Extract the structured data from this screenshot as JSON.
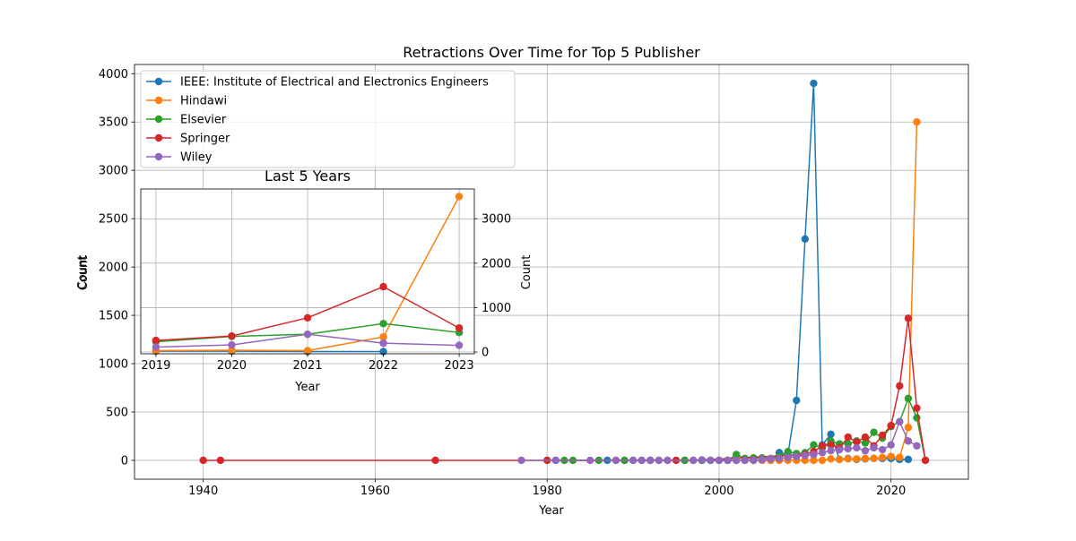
{
  "chart_data": [
    {
      "type": "line",
      "title": "Retractions Over Time for Top 5 Publisher",
      "xlabel": "Year",
      "ylabel": "",
      "xlim": [
        1932,
        2029
      ],
      "ylim": [
        -195,
        4095
      ],
      "xticks": [
        1940,
        1960,
        1980,
        2000,
        2020
      ],
      "yticks": [
        0,
        500,
        1000,
        1500,
        2000,
        2500,
        3000,
        3500,
        4000
      ],
      "grid": true,
      "legend": "top-left",
      "series": [
        {
          "name": "IEEE: Institute of Electrical and Electronics Engineers",
          "color": "#1f77b4",
          "points": [
            [
              1981,
              0
            ],
            [
              1987,
              0
            ],
            [
              1989,
              0
            ],
            [
              1990,
              0
            ],
            [
              1991,
              0
            ],
            [
              1992,
              0
            ],
            [
              1993,
              0
            ],
            [
              1994,
              0
            ],
            [
              1996,
              0
            ],
            [
              1998,
              0
            ],
            [
              1999,
              0
            ],
            [
              2000,
              0
            ],
            [
              2001,
              0
            ],
            [
              2002,
              0
            ],
            [
              2003,
              0
            ],
            [
              2004,
              0
            ],
            [
              2005,
              0
            ],
            [
              2006,
              0
            ],
            [
              2007,
              80
            ],
            [
              2008,
              60
            ],
            [
              2009,
              620
            ],
            [
              2010,
              2290
            ],
            [
              2011,
              3900
            ],
            [
              2012,
              160
            ],
            [
              2013,
              270
            ],
            [
              2014,
              10
            ],
            [
              2015,
              20
            ],
            [
              2016,
              10
            ],
            [
              2017,
              15
            ],
            [
              2018,
              20
            ],
            [
              2019,
              20
            ],
            [
              2020,
              20
            ],
            [
              2021,
              10
            ],
            [
              2022,
              10
            ]
          ]
        },
        {
          "name": "Hindawi",
          "color": "#ff7f0e",
          "points": [
            [
              2003,
              0
            ],
            [
              2004,
              0
            ],
            [
              2005,
              0
            ],
            [
              2006,
              0
            ],
            [
              2007,
              0
            ],
            [
              2008,
              0
            ],
            [
              2009,
              0
            ],
            [
              2010,
              0
            ],
            [
              2011,
              0
            ],
            [
              2012,
              0
            ],
            [
              2013,
              15
            ],
            [
              2014,
              10
            ],
            [
              2015,
              15
            ],
            [
              2016,
              15
            ],
            [
              2017,
              20
            ],
            [
              2018,
              20
            ],
            [
              2019,
              30
            ],
            [
              2020,
              40
            ],
            [
              2021,
              30
            ],
            [
              2022,
              340
            ],
            [
              2023,
              3500
            ]
          ]
        },
        {
          "name": "Elsevier",
          "color": "#2ca02c",
          "points": [
            [
              1982,
              0
            ],
            [
              1983,
              0
            ],
            [
              1986,
              0
            ],
            [
              1989,
              0
            ],
            [
              1992,
              0
            ],
            [
              1996,
              0
            ],
            [
              1998,
              0
            ],
            [
              1999,
              0
            ],
            [
              2000,
              0
            ],
            [
              2001,
              0
            ],
            [
              2002,
              60
            ],
            [
              2003,
              20
            ],
            [
              2004,
              25
            ],
            [
              2005,
              25
            ],
            [
              2006,
              20
            ],
            [
              2007,
              40
            ],
            [
              2008,
              90
            ],
            [
              2009,
              70
            ],
            [
              2010,
              80
            ],
            [
              2011,
              160
            ],
            [
              2012,
              130
            ],
            [
              2013,
              200
            ],
            [
              2014,
              170
            ],
            [
              2015,
              170
            ],
            [
              2016,
              200
            ],
            [
              2017,
              180
            ],
            [
              2018,
              290
            ],
            [
              2019,
              230
            ],
            [
              2020,
              350
            ],
            [
              2021,
              400
            ],
            [
              2022,
              640
            ],
            [
              2023,
              440
            ],
            [
              2024,
              0
            ]
          ]
        },
        {
          "name": "Springer",
          "color": "#d62728",
          "points": [
            [
              1940,
              0
            ],
            [
              1942,
              0
            ],
            [
              1967,
              0
            ],
            [
              1980,
              0
            ],
            [
              1988,
              0
            ],
            [
              1995,
              0
            ],
            [
              1997,
              0
            ],
            [
              2010,
              60
            ],
            [
              2011,
              90
            ],
            [
              2012,
              150
            ],
            [
              2013,
              160
            ],
            [
              2014,
              130
            ],
            [
              2015,
              240
            ],
            [
              2016,
              190
            ],
            [
              2017,
              240
            ],
            [
              2018,
              150
            ],
            [
              2019,
              260
            ],
            [
              2020,
              360
            ],
            [
              2021,
              770
            ],
            [
              2022,
              1470
            ],
            [
              2023,
              540
            ],
            [
              2024,
              0
            ]
          ]
        },
        {
          "name": "Wiley",
          "color": "#9467bd",
          "points": [
            [
              1977,
              0
            ],
            [
              1981,
              0
            ],
            [
              1985,
              0
            ],
            [
              1988,
              0
            ],
            [
              1990,
              0
            ],
            [
              1991,
              0
            ],
            [
              1992,
              0
            ],
            [
              1993,
              0
            ],
            [
              1994,
              0
            ],
            [
              1997,
              0
            ],
            [
              1998,
              5
            ],
            [
              1999,
              0
            ],
            [
              2000,
              0
            ],
            [
              2001,
              0
            ],
            [
              2002,
              0
            ],
            [
              2003,
              0
            ],
            [
              2004,
              0
            ],
            [
              2005,
              10
            ],
            [
              2006,
              15
            ],
            [
              2007,
              20
            ],
            [
              2008,
              30
            ],
            [
              2009,
              40
            ],
            [
              2010,
              50
            ],
            [
              2011,
              60
            ],
            [
              2012,
              80
            ],
            [
              2013,
              100
            ],
            [
              2014,
              110
            ],
            [
              2015,
              120
            ],
            [
              2016,
              130
            ],
            [
              2017,
              100
            ],
            [
              2018,
              130
            ],
            [
              2019,
              110
            ],
            [
              2020,
              160
            ],
            [
              2021,
              400
            ],
            [
              2022,
              200
            ],
            [
              2023,
              150
            ]
          ]
        }
      ]
    },
    {
      "type": "line",
      "title": "Last 5 Years",
      "xlabel": "Year",
      "ylabel": "Count",
      "xlim": [
        2018.8,
        2023.2
      ],
      "ylim": [
        -40,
        3670
      ],
      "xticks": [
        2019,
        2020,
        2021,
        2022,
        2023
      ],
      "yticks": [
        0,
        1000,
        2000,
        3000
      ],
      "y_axis_side": "right",
      "grid": true,
      "series": [
        {
          "name": "IEEE: Institute of Electrical and Electronics Engineers",
          "color": "#1f77b4",
          "points": [
            [
              2019,
              20
            ],
            [
              2020,
              20
            ],
            [
              2021,
              10
            ],
            [
              2022,
              10
            ]
          ]
        },
        {
          "name": "Hindawi",
          "color": "#ff7f0e",
          "points": [
            [
              2019,
              30
            ],
            [
              2020,
              40
            ],
            [
              2021,
              30
            ],
            [
              2022,
              340
            ],
            [
              2023,
              3500
            ]
          ]
        },
        {
          "name": "Elsevier",
          "color": "#2ca02c",
          "points": [
            [
              2019,
              230
            ],
            [
              2020,
              350
            ],
            [
              2021,
              400
            ],
            [
              2022,
              640
            ],
            [
              2023,
              440
            ]
          ]
        },
        {
          "name": "Springer",
          "color": "#d62728",
          "points": [
            [
              2019,
              260
            ],
            [
              2020,
              360
            ],
            [
              2021,
              770
            ],
            [
              2022,
              1470
            ],
            [
              2023,
              540
            ]
          ]
        },
        {
          "name": "Wiley",
          "color": "#9467bd",
          "points": [
            [
              2019,
              110
            ],
            [
              2020,
              160
            ],
            [
              2021,
              400
            ],
            [
              2022,
              200
            ],
            [
              2023,
              150
            ]
          ]
        }
      ]
    }
  ],
  "main_ylabel_left": "Count"
}
